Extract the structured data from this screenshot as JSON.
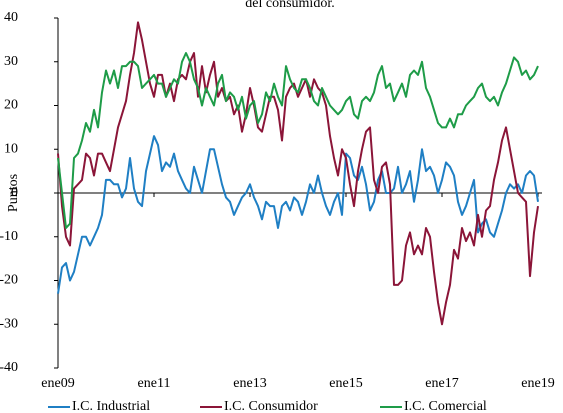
{
  "chart_data": {
    "type": "line",
    "title": "del consumidor.",
    "y_label": "Puntos",
    "categories": [
      "ene09",
      null,
      null,
      null,
      null,
      null,
      null,
      null,
      null,
      null,
      null,
      null,
      null,
      null,
      null,
      null,
      null,
      null,
      null,
      null,
      null,
      null,
      null,
      null,
      "ene11",
      null,
      null,
      null,
      null,
      null,
      null,
      null,
      null,
      null,
      null,
      null,
      null,
      null,
      null,
      null,
      null,
      null,
      null,
      null,
      null,
      null,
      null,
      null,
      "ene13",
      null,
      null,
      null,
      null,
      null,
      null,
      null,
      null,
      null,
      null,
      null,
      null,
      null,
      null,
      null,
      null,
      null,
      null,
      null,
      null,
      null,
      null,
      null,
      "ene15",
      null,
      null,
      null,
      null,
      null,
      null,
      null,
      null,
      null,
      null,
      null,
      null,
      null,
      null,
      null,
      null,
      null,
      null,
      null,
      null,
      null,
      null,
      null,
      "ene17",
      null,
      null,
      null,
      null,
      null,
      null,
      null,
      null,
      null,
      null,
      null,
      null,
      null,
      null,
      null,
      null,
      null,
      null,
      null,
      null,
      null,
      null,
      null,
      "ene19"
    ],
    "series": [
      {
        "name": "I.C. Industrial",
        "color": "#1f7fc4",
        "values": [
          -23,
          -17,
          -16,
          -20,
          -18,
          -14,
          -10,
          -10,
          -12,
          -10,
          -8,
          -5,
          3,
          3,
          2,
          2,
          -1,
          1,
          8,
          1,
          -2,
          -3,
          5,
          9,
          13,
          11,
          5,
          7,
          6,
          9,
          5,
          3,
          1,
          0,
          6,
          3,
          0,
          5,
          10,
          10,
          6,
          2,
          -1,
          -2,
          -5,
          -3,
          -1,
          0,
          2,
          -1,
          -3,
          -6,
          -2,
          -3,
          -3,
          -8,
          -3,
          -2,
          -4,
          -1,
          -2,
          -5,
          -2,
          2,
          0,
          4,
          0,
          -3,
          -5,
          -2,
          0,
          -5,
          9,
          8,
          4,
          3,
          6,
          2,
          -4,
          -2,
          3,
          5,
          0,
          0,
          1,
          6,
          0,
          2,
          5,
          -2,
          3,
          10,
          5,
          6,
          4,
          0,
          3,
          7,
          6,
          4,
          -2,
          -5,
          -3,
          0,
          3,
          -9,
          -7,
          -6,
          -9,
          -10,
          -7,
          -4,
          0,
          2,
          1,
          2,
          0,
          4,
          5,
          4,
          -2
        ]
      },
      {
        "name": "I.C. Consumidor",
        "color": "#8b1538",
        "values": [
          9,
          -3,
          -10,
          -12,
          1,
          2,
          3,
          9,
          8,
          4,
          9,
          9,
          7,
          5,
          10,
          15,
          18,
          21,
          27,
          32,
          39,
          35,
          30,
          25,
          22,
          27,
          27,
          22,
          25,
          21,
          26,
          27,
          26,
          30,
          32,
          22,
          29,
          23,
          27,
          30,
          22,
          24,
          21,
          22,
          18,
          20,
          14,
          18,
          24,
          20,
          15,
          14,
          18,
          22,
          22,
          19,
          12,
          22,
          24,
          25,
          22,
          24,
          26,
          22,
          26,
          24,
          23,
          20,
          13,
          8,
          4,
          10,
          8,
          2,
          -3,
          5,
          10,
          14,
          15,
          3,
          0,
          6,
          7,
          2,
          -21,
          -21,
          -20,
          -12,
          -9,
          -14,
          -12,
          -14,
          -8,
          -10,
          -18,
          -25,
          -30,
          -25,
          -21,
          -13,
          -15,
          -8,
          -11,
          -9,
          -12,
          -5,
          -10,
          -4,
          -3,
          3,
          7,
          12,
          15,
          10,
          5,
          0,
          -1,
          -2,
          -19,
          -9,
          -3
        ]
      },
      {
        "name": "I.C. Comercial",
        "color": "#1e9c48",
        "values": [
          8,
          0,
          -8,
          -7,
          8,
          9,
          12,
          16,
          14,
          19,
          15,
          23,
          28,
          25,
          28,
          24,
          29,
          29,
          30,
          30,
          29,
          24,
          25,
          26,
          27,
          25,
          25,
          22,
          24,
          26,
          25,
          30,
          32,
          30,
          26,
          24,
          20,
          24,
          22,
          20,
          25,
          27,
          21,
          23,
          22,
          19,
          22,
          17,
          20,
          21,
          16,
          18,
          23,
          21,
          25,
          22,
          20,
          29,
          26,
          24,
          23,
          26,
          26,
          24,
          21,
          20,
          24,
          22,
          20,
          19,
          18,
          19,
          21,
          22,
          18,
          17,
          21,
          22,
          21,
          23,
          27,
          29,
          24,
          25,
          21,
          23,
          25,
          22,
          27,
          28,
          27,
          30,
          24,
          22,
          19,
          16,
          15,
          15,
          17,
          15,
          18,
          18,
          20,
          21,
          22,
          24,
          25,
          22,
          21,
          22,
          20,
          23,
          25,
          28,
          31,
          30,
          27,
          28,
          26,
          27,
          29
        ]
      }
    ],
    "ylim": [
      -40,
      40
    ],
    "yticks": [
      -40,
      -30,
      -20,
      -10,
      0,
      10,
      20,
      30,
      40
    ]
  }
}
